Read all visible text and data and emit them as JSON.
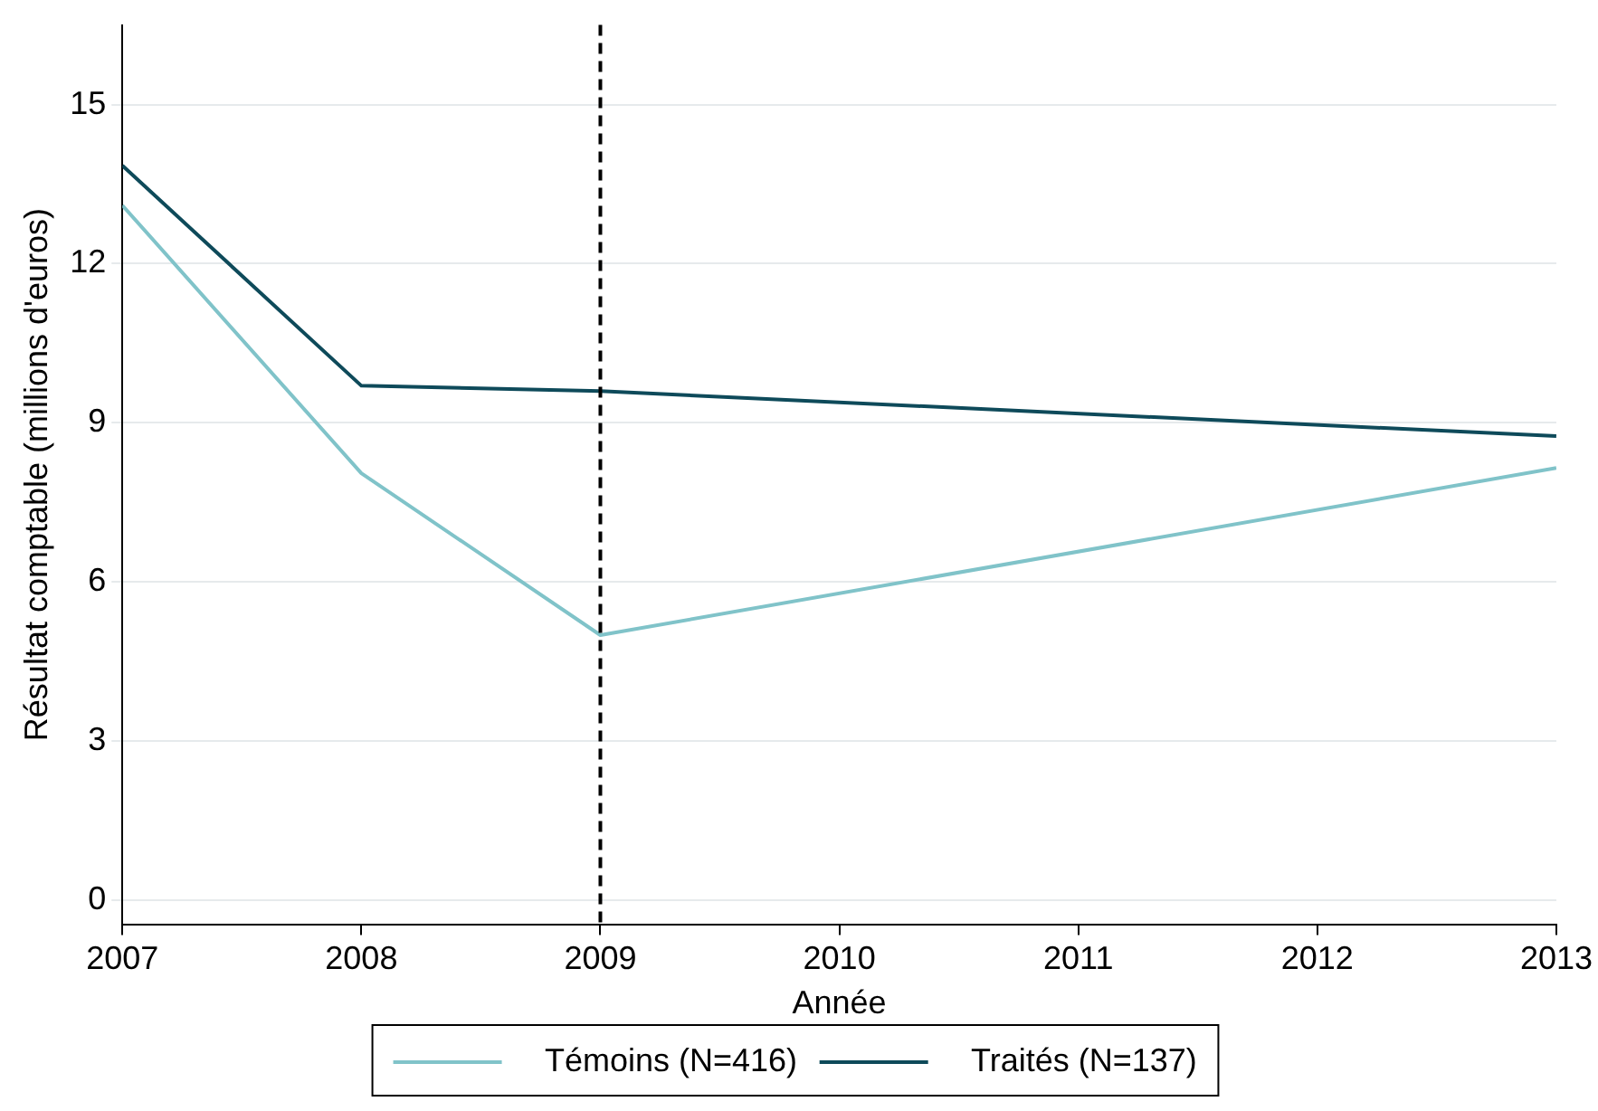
{
  "chart_data": {
    "type": "line",
    "xlabel": "Année",
    "ylabel": "Résultat comptable (millions d'euros)",
    "xlim": [
      2007,
      2013
    ],
    "xticks": [
      2007,
      2008,
      2009,
      2010,
      2011,
      2012,
      2013
    ],
    "ylim": [
      -0.45,
      16.5
    ],
    "yticks": [
      0,
      3,
      6,
      9,
      12,
      15
    ],
    "series": [
      {
        "name": "Témoins (N=416)",
        "color": "#80c3c9",
        "x": [
          2007,
          2008,
          2009,
          2013
        ],
        "values": [
          13.1,
          8.05,
          5.0,
          8.15
        ]
      },
      {
        "name": "Traités (N=137)",
        "color": "#0e4a5a",
        "x": [
          2007,
          2008,
          2009,
          2013
        ],
        "values": [
          13.85,
          9.7,
          9.6,
          8.75
        ]
      }
    ],
    "ref_lines": [
      {
        "axis": "x",
        "value": 2009,
        "color": "#000000",
        "line_style": "dashed"
      }
    ],
    "grid": "y",
    "legend": "bottom",
    "marker": "none",
    "line_style": "solid"
  }
}
